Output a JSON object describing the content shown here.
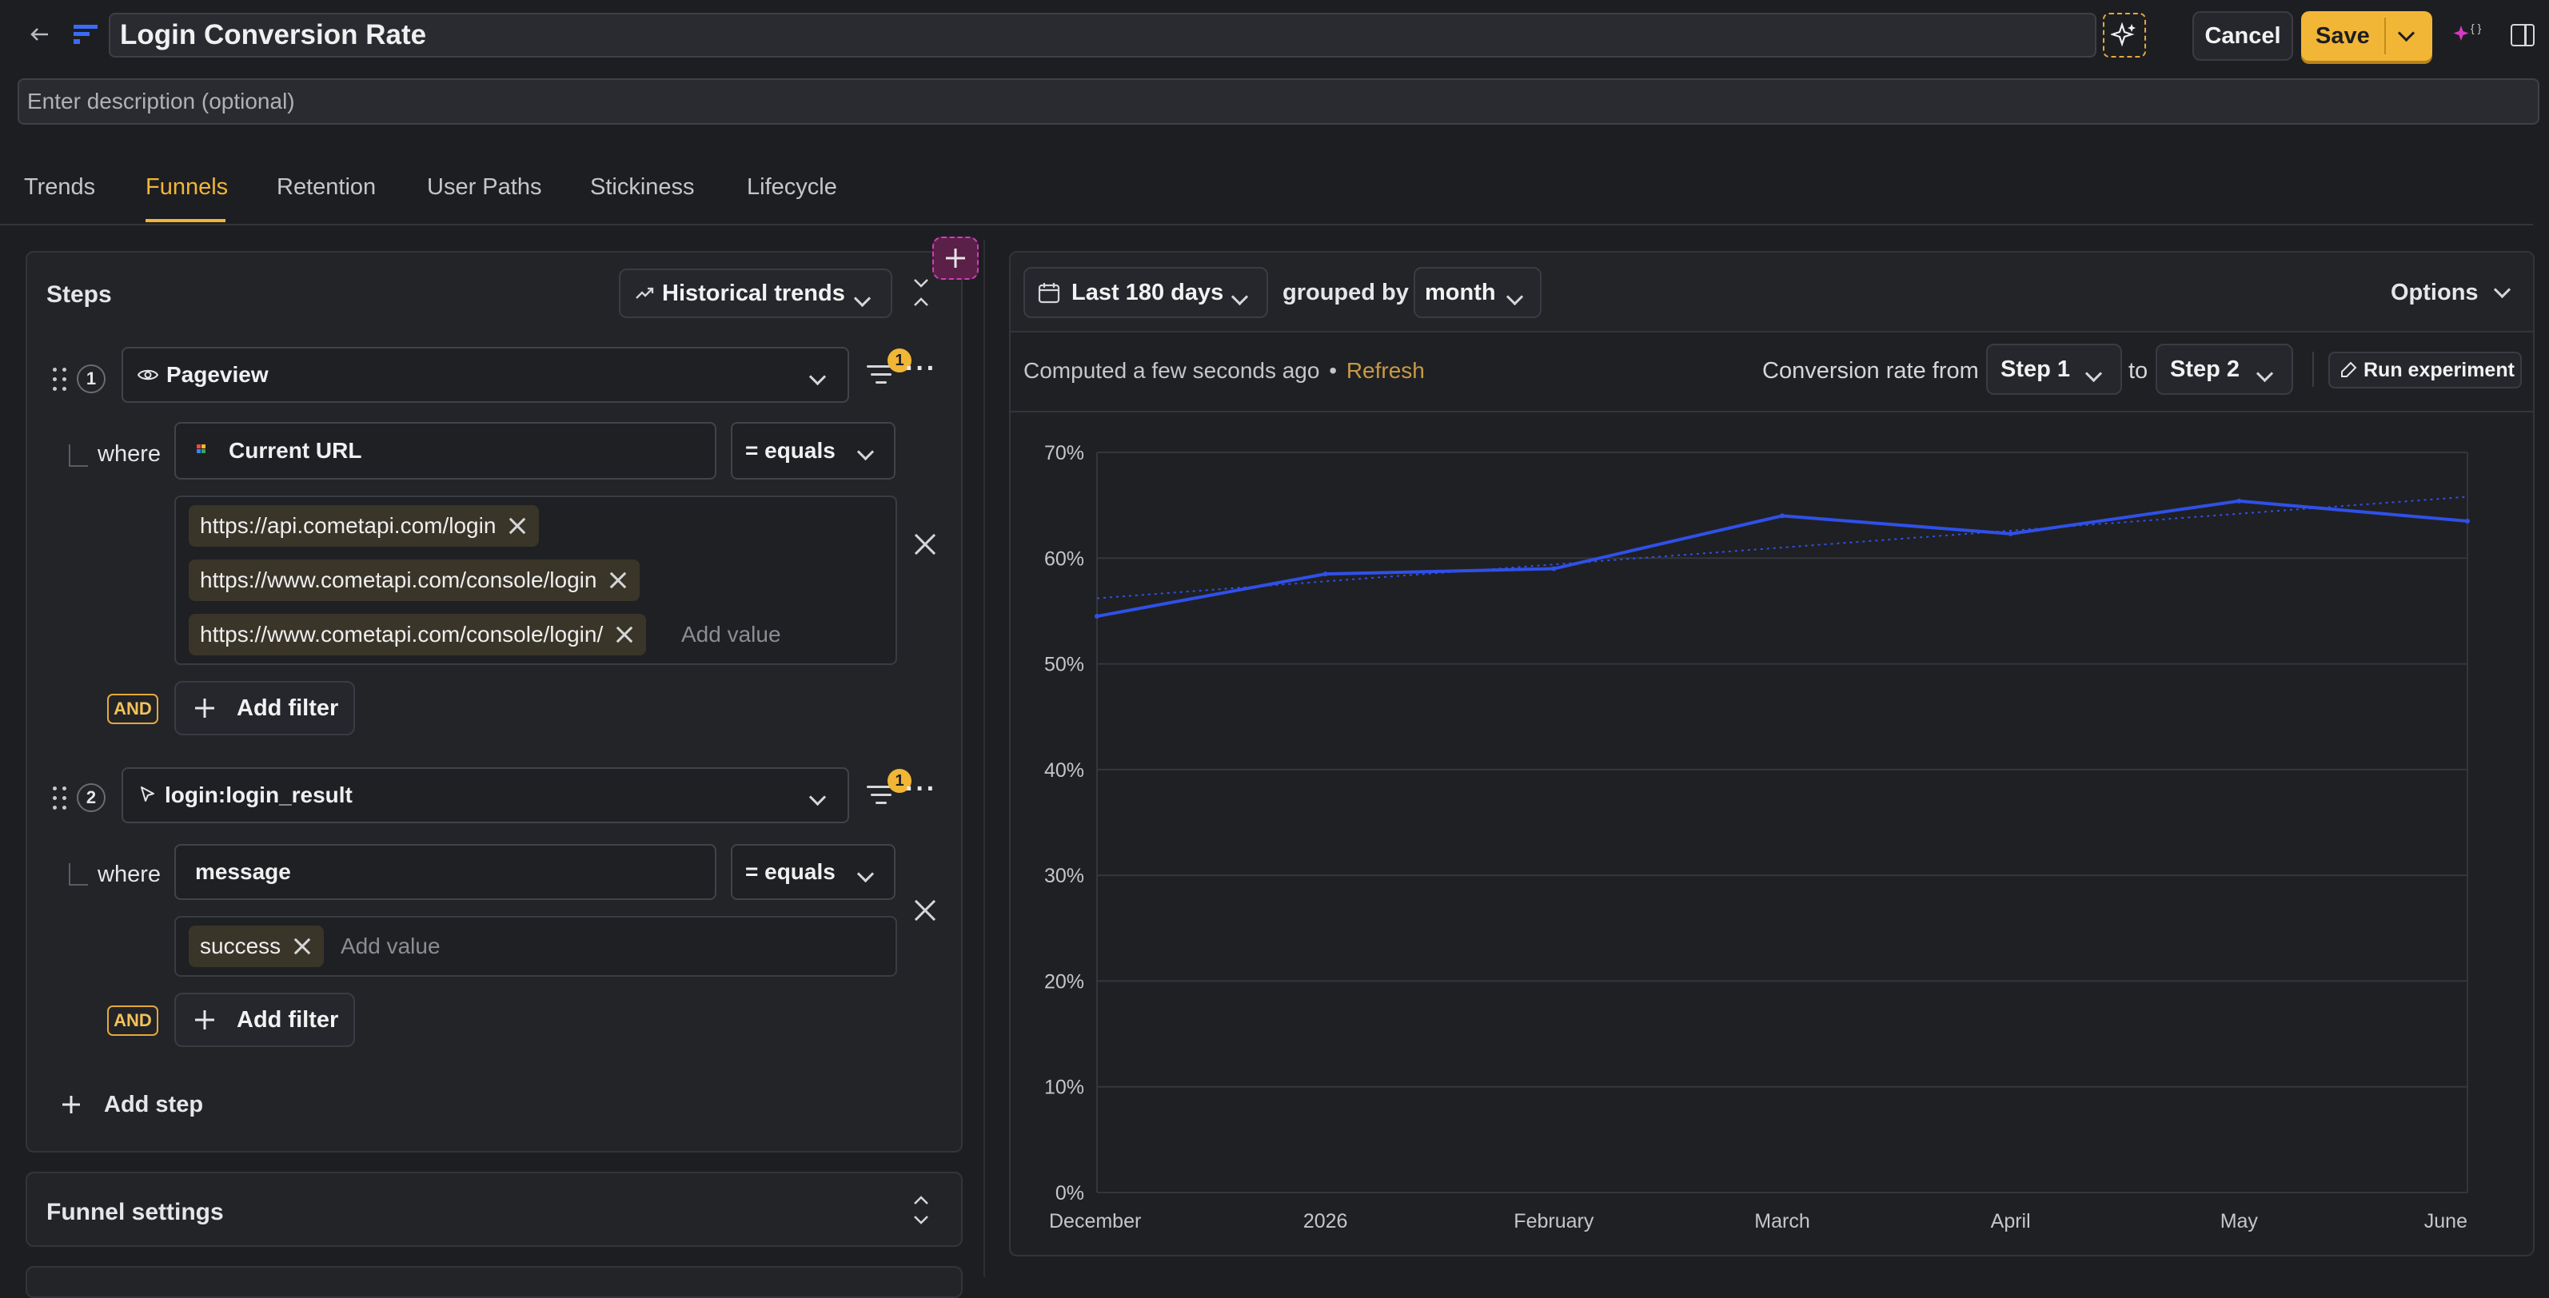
{
  "header": {
    "title": "Login Conversion Rate",
    "description_placeholder": "Enter description (optional)",
    "cancel_label": "Cancel",
    "save_label": "Save"
  },
  "tabs": [
    {
      "label": "Trends"
    },
    {
      "label": "Funnels",
      "active": true
    },
    {
      "label": "Retention"
    },
    {
      "label": "User Paths"
    },
    {
      "label": "Stickiness"
    },
    {
      "label": "Lifecycle"
    }
  ],
  "steps_panel": {
    "title": "Steps",
    "viz_type": "Historical trends",
    "steps": [
      {
        "number": "1",
        "event": "Pageview",
        "event_icon": "eye-icon",
        "filter_count": "1",
        "filter": {
          "where_label": "where",
          "property": "Current URL",
          "operator": "= equals",
          "values": [
            "https://api.cometapi.com/login",
            "https://www.cometapi.com/console/login",
            "https://www.cometapi.com/console/login/"
          ],
          "add_value_placeholder": "Add value"
        },
        "and_label": "AND",
        "add_filter_label": "Add filter"
      },
      {
        "number": "2",
        "event": "login:login_result",
        "event_icon": "cursor-icon",
        "filter_count": "1",
        "filter": {
          "where_label": "where",
          "property": "message",
          "operator": "= equals",
          "values": [
            "success"
          ],
          "add_value_placeholder": "Add value"
        },
        "and_label": "AND",
        "add_filter_label": "Add filter"
      }
    ],
    "add_step_label": "Add step"
  },
  "funnel_settings": {
    "title": "Funnel settings"
  },
  "results": {
    "date_range": "Last 180 days",
    "grouped_by_label": "grouped by",
    "interval": "month",
    "options_label": "Options",
    "computed_text": "Computed a few seconds ago",
    "refresh_label": "Refresh",
    "conversion_from_label": "Conversion rate from",
    "from_step": "Step 1",
    "to_label": "to",
    "to_step": "Step 2",
    "run_experiment_label": "Run experiment"
  },
  "chart_data": {
    "type": "line",
    "categories": [
      "December",
      "2026",
      "February",
      "March",
      "April",
      "May",
      "June"
    ],
    "series": [
      {
        "values": [
          54.5,
          58.5,
          59,
          64,
          62.3,
          65.4,
          63.5
        ],
        "color": "#2f50e8"
      },
      {
        "values": [
          56.2,
          57.8,
          59.4,
          61,
          62.6,
          64.2,
          65.8
        ],
        "color": "#2f50e8",
        "style": "dotted-trend"
      }
    ],
    "y_ticks": [
      "0%",
      "10%",
      "20%",
      "30%",
      "40%",
      "50%",
      "60%",
      "70%"
    ],
    "ylim": [
      0,
      70
    ],
    "grid": true
  },
  "colors": {
    "accent": "#f2b636",
    "series": "#2f50e8",
    "refresh": "#c89a45",
    "magic": "#d63ac2"
  }
}
